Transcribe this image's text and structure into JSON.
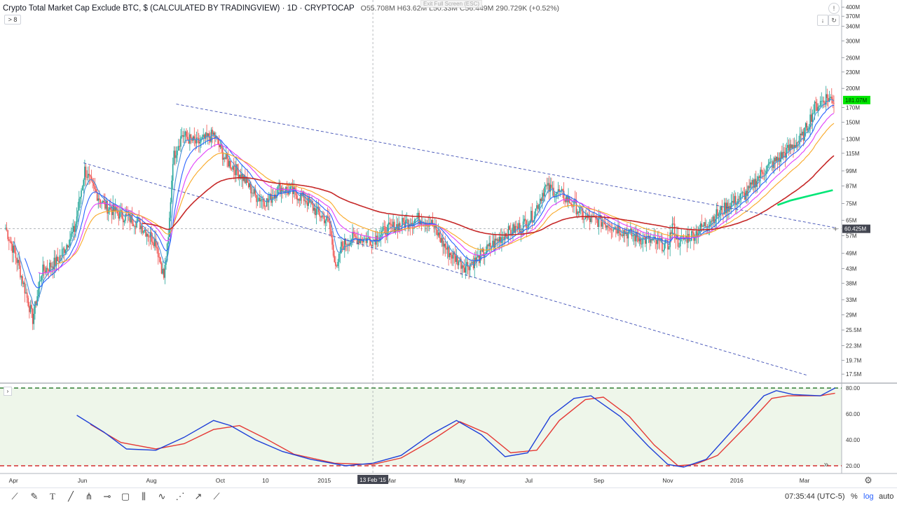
{
  "header": {
    "title": "Crypto Total Market Cap Exclude BTC, $ (CALCULATED BY TRADINGVIEW) · 1D · CRYPTOCAP",
    "ohlc": "O55.708M H63.62M L50.33M C56.449M 290.729K (+0.52%)",
    "exit_full_screen": "Exit Full Screen (ESC)",
    "collapse_label": "> 8"
  },
  "price_axis": {
    "ticks": [
      "400M",
      "370M",
      "340M",
      "300M",
      "260M",
      "230M",
      "200M",
      "170M",
      "150M",
      "130M",
      "115M",
      "99M",
      "87M",
      "75M",
      "65M",
      "57M",
      "49M",
      "43M",
      "38M",
      "33M",
      "29M",
      "25.5M",
      "22.3M",
      "19.7M",
      "17.5M"
    ],
    "last_price_label": "181.07M",
    "crosshair_price_label": "60.425M",
    "log_scale": true
  },
  "osc_axis": {
    "ticks": [
      "80.00",
      "60.00",
      "40.00",
      "20.00"
    ]
  },
  "time_axis": {
    "ticks": [
      "Apr",
      "Jun",
      "Aug",
      "Oct",
      "10",
      "2015",
      "Mar",
      "May",
      "Jul",
      "Sep",
      "Nov",
      "2016",
      "Mar"
    ],
    "crosshair_date": "13 Feb '15"
  },
  "colors": {
    "up": "#26a69a",
    "down": "#ef5350",
    "ema_short": "#2962ff",
    "ema_mid": "#e040fb",
    "ema_long": "#f9a825",
    "ema_200": "#c62828",
    "ema_fast": "#4a90d9",
    "green_ma": "#00e676",
    "stoch_k": "#1e3fd8",
    "stoch_d": "#e53935",
    "band": "#2e7d32",
    "band_low": "#d32f2f"
  },
  "bottom_toolbar": {
    "tools": [
      "trend-line-tools",
      "brush-tool",
      "text-tool",
      "ruler-tool",
      "pitchfork-tool",
      "horizontal-line-tool",
      "rectangle-tool",
      "fib-tool",
      "elliott-wave-tool",
      "gann-tool",
      "curve-tool",
      "brush-tool-2"
    ],
    "clock": "07:35:44 (UTC-5)",
    "percent_label": "%",
    "log_label": "log",
    "auto_label": "auto"
  },
  "chart_data": {
    "type": "candlestick",
    "title": "Crypto Total Market Cap Exclude BTC, $ (CALCULATED BY TRADINGVIEW)",
    "interval": "1D",
    "y_scale": "log",
    "ylim": [
      16000000,
      420000000
    ],
    "path": [
      [
        "2014-03-25",
        61
      ],
      [
        "2014-04-05",
        45
      ],
      [
        "2014-04-18",
        28
      ],
      [
        "2014-04-26",
        42
      ],
      [
        "2014-05-10",
        46
      ],
      [
        "2014-05-25",
        60
      ],
      [
        "2014-06-03",
        100
      ],
      [
        "2014-06-10",
        86
      ],
      [
        "2014-06-20",
        74
      ],
      [
        "2014-07-05",
        68
      ],
      [
        "2014-07-20",
        64
      ],
      [
        "2014-08-05",
        54
      ],
      [
        "2014-08-12",
        40
      ],
      [
        "2014-08-16",
        55
      ],
      [
        "2014-08-20",
        110
      ],
      [
        "2014-08-28",
        135
      ],
      [
        "2014-09-10",
        125
      ],
      [
        "2014-09-25",
        135
      ],
      [
        "2014-10-05",
        110
      ],
      [
        "2014-10-20",
        95
      ],
      [
        "2014-11-01",
        80
      ],
      [
        "2014-11-12",
        76
      ],
      [
        "2014-11-22",
        86
      ],
      [
        "2014-12-05",
        82
      ],
      [
        "2014-12-15",
        78
      ],
      [
        "2014-12-25",
        70
      ],
      [
        "2015-01-05",
        64
      ],
      [
        "2015-01-12",
        42
      ],
      [
        "2015-01-16",
        52
      ],
      [
        "2015-01-25",
        56
      ],
      [
        "2015-02-13",
        55
      ],
      [
        "2015-02-25",
        60
      ],
      [
        "2015-03-10",
        63
      ],
      [
        "2015-03-25",
        66
      ],
      [
        "2015-04-05",
        64
      ],
      [
        "2015-04-20",
        50
      ],
      [
        "2015-05-05",
        44
      ],
      [
        "2015-05-15",
        46
      ],
      [
        "2015-05-28",
        52
      ],
      [
        "2015-06-10",
        58
      ],
      [
        "2015-06-25",
        62
      ],
      [
        "2015-07-05",
        68
      ],
      [
        "2015-07-15",
        86
      ],
      [
        "2015-07-28",
        82
      ],
      [
        "2015-08-10",
        74
      ],
      [
        "2015-08-20",
        66
      ],
      [
        "2015-09-05",
        64
      ],
      [
        "2015-09-20",
        60
      ],
      [
        "2015-10-05",
        56
      ],
      [
        "2015-10-20",
        54
      ],
      [
        "2015-11-01",
        52
      ],
      [
        "2015-11-05",
        62
      ],
      [
        "2015-11-10",
        54
      ],
      [
        "2015-11-25",
        58
      ],
      [
        "2015-12-10",
        66
      ],
      [
        "2015-12-25",
        74
      ],
      [
        "2016-01-10",
        82
      ],
      [
        "2016-01-25",
        100
      ],
      [
        "2016-02-05",
        108
      ],
      [
        "2016-02-15",
        118
      ],
      [
        "2016-02-28",
        132
      ],
      [
        "2016-03-10",
        170
      ],
      [
        "2016-03-20",
        185
      ],
      [
        "2016-03-27",
        181
      ]
    ],
    "emas": [
      {
        "color": "ema_fast",
        "period": 8
      },
      {
        "color": "ema_short",
        "period": 20
      },
      {
        "color": "ema_mid",
        "period": 35
      },
      {
        "color": "ema_long",
        "period": 55
      },
      {
        "color": "ema_200",
        "period": 150
      }
    ],
    "green_ma": [
      [
        "2016-02-06",
        74
      ],
      [
        "2016-02-18",
        77
      ],
      [
        "2016-03-05",
        80
      ],
      [
        "2016-03-26",
        84
      ]
    ],
    "trendlines": [
      {
        "from": [
          "2014-08-23",
          175
        ],
        "to": [
          "2016-03-28",
          61
        ]
      },
      {
        "from": [
          "2014-06-02",
          106
        ],
        "to": [
          "2016-03-04",
          17.3
        ]
      }
    ],
    "stochastic": {
      "overbought": 80,
      "oversold": 20,
      "k": [
        [
          "2014-05-27",
          59
        ],
        [
          "2014-06-20",
          46
        ],
        [
          "2014-07-10",
          33
        ],
        [
          "2014-08-05",
          32
        ],
        [
          "2014-08-30",
          42
        ],
        [
          "2014-09-25",
          55
        ],
        [
          "2014-10-10",
          51
        ],
        [
          "2014-11-01",
          40
        ],
        [
          "2014-11-25",
          31
        ],
        [
          "2014-12-20",
          25
        ],
        [
          "2015-01-20",
          20
        ],
        [
          "2015-02-13",
          22
        ],
        [
          "2015-03-10",
          28
        ],
        [
          "2015-04-05",
          44
        ],
        [
          "2015-04-28",
          55
        ],
        [
          "2015-05-20",
          44
        ],
        [
          "2015-06-10",
          27
        ],
        [
          "2015-06-30",
          30
        ],
        [
          "2015-07-20",
          58
        ],
        [
          "2015-08-10",
          72
        ],
        [
          "2015-08-25",
          74
        ],
        [
          "2015-09-20",
          58
        ],
        [
          "2015-10-15",
          35
        ],
        [
          "2015-11-01",
          21
        ],
        [
          "2015-11-15",
          19
        ],
        [
          "2015-12-05",
          25
        ],
        [
          "2016-01-05",
          55
        ],
        [
          "2016-01-25",
          74
        ],
        [
          "2016-02-05",
          78
        ],
        [
          "2016-02-20",
          75
        ],
        [
          "2016-03-15",
          74
        ],
        [
          "2016-03-28",
          80
        ]
      ],
      "d": [
        [
          "2014-06-08",
          52
        ],
        [
          "2014-07-05",
          38
        ],
        [
          "2014-08-05",
          33
        ],
        [
          "2014-08-30",
          37
        ],
        [
          "2014-09-25",
          48
        ],
        [
          "2014-10-18",
          51
        ],
        [
          "2014-11-10",
          41
        ],
        [
          "2014-12-05",
          29
        ],
        [
          "2015-01-10",
          22
        ],
        [
          "2015-02-13",
          21
        ],
        [
          "2015-03-10",
          26
        ],
        [
          "2015-04-05",
          39
        ],
        [
          "2015-05-01",
          54
        ],
        [
          "2015-05-25",
          45
        ],
        [
          "2015-06-15",
          30
        ],
        [
          "2015-07-08",
          32
        ],
        [
          "2015-07-28",
          55
        ],
        [
          "2015-08-20",
          71
        ],
        [
          "2015-09-05",
          73
        ],
        [
          "2015-09-28",
          58
        ],
        [
          "2015-10-20",
          36
        ],
        [
          "2015-11-10",
          20
        ],
        [
          "2015-11-25",
          21
        ],
        [
          "2015-12-15",
          28
        ],
        [
          "2016-01-12",
          53
        ],
        [
          "2016-02-01",
          72
        ],
        [
          "2016-02-15",
          74
        ],
        [
          "2016-03-15",
          74
        ],
        [
          "2016-03-28",
          76
        ]
      ]
    }
  }
}
